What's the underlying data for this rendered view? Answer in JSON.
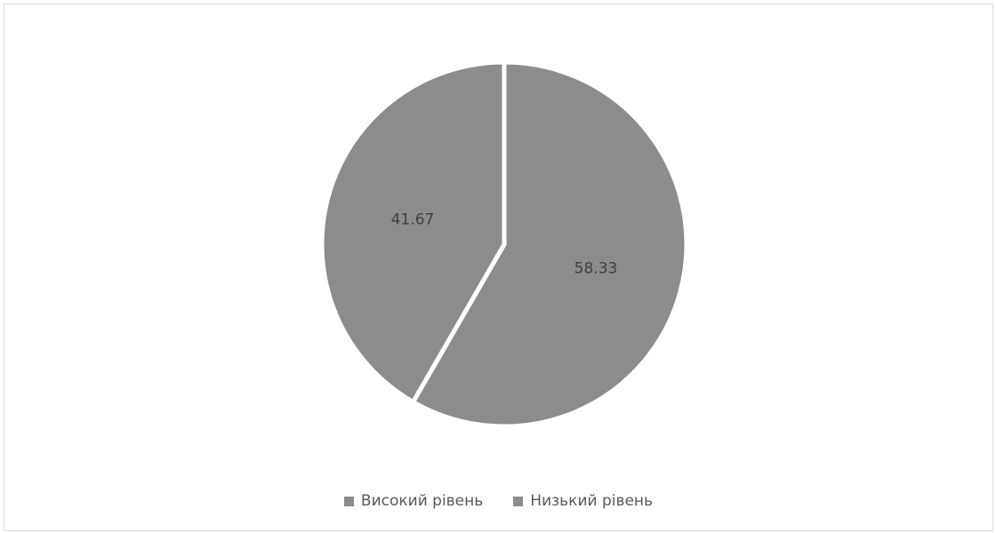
{
  "chart_data": {
    "type": "pie",
    "title": "",
    "categories": [
      "Високий рівень",
      "Низький рівень"
    ],
    "values": [
      58.33,
      41.67
    ],
    "data_labels": [
      "58.33",
      "41.67"
    ],
    "colors": [
      "#8c8c8c",
      "#8c8c8c"
    ],
    "slice_separator_color": "#ffffff",
    "start_angle_deg": 0,
    "direction": "clockwise",
    "legend_position": "bottom"
  },
  "legend": {
    "items": [
      {
        "label": "Високий рівень",
        "color": "#8c8c8c"
      },
      {
        "label": "Низький рівень",
        "color": "#8c8c8c"
      }
    ]
  }
}
